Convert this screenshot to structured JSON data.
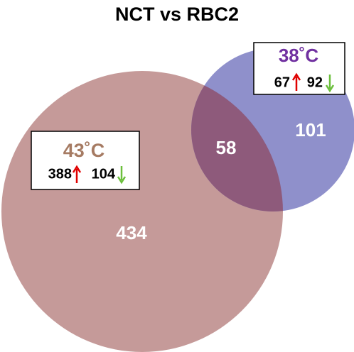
{
  "title": "NCT vs RBC2",
  "sets": [
    {
      "label": "43˚C",
      "up": 388,
      "down": 104,
      "only": 434
    },
    {
      "label": "38˚C",
      "up": 67,
      "down": 92,
      "only": 101
    }
  ],
  "overlap": 58
}
